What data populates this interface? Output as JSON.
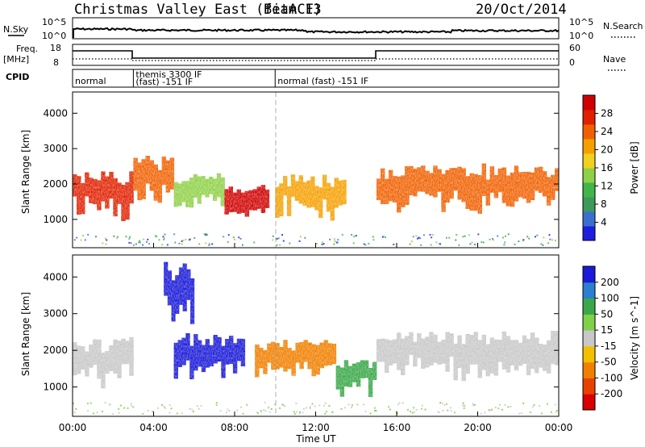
{
  "header": {
    "title": "Christmas Valley East (fitACF)",
    "beam": "Beam 13",
    "date": "20/Oct/2014"
  },
  "nsky_panel": {
    "left_label": "N.Sky",
    "left_ticks": [
      "10^5",
      "10^0"
    ],
    "right_ticks": [
      "10^5",
      "10^0"
    ],
    "right_label": "N.Search"
  },
  "freq_panel": {
    "left_label_1": "Freq.",
    "left_label_2": "[MHz]",
    "left_ticks": [
      "18",
      "8"
    ],
    "right_ticks": [
      "60",
      "0"
    ],
    "right_label": "Nave"
  },
  "cpid_panel": {
    "label": "CPID",
    "segments": [
      {
        "start_hour": 0.0,
        "lines": [
          "normal"
        ]
      },
      {
        "start_hour": 3.0,
        "lines": [
          "themis 3300 IF",
          "(fast) -151 IF"
        ]
      },
      {
        "start_hour": 10.0,
        "lines": [
          "normal (fast) -151 IF"
        ]
      }
    ]
  },
  "chart_data": [
    {
      "type": "heatmap",
      "name": "power",
      "ylabel": "Slant Range [km]",
      "yticks": [
        "4000",
        "3000",
        "2000",
        "1000"
      ],
      "ylim": [
        200,
        4600
      ],
      "xlim": [
        0,
        24
      ],
      "colorbar": {
        "label": "Power [dB]",
        "ticks": [
          "28",
          "24",
          "20",
          "16",
          "12",
          "8",
          "4"
        ],
        "range": [
          0,
          30
        ]
      },
      "echo_regions": [
        {
          "x": [
            0.0,
            3.0
          ],
          "range_km": [
            1100,
            2200
          ],
          "value_db": 26
        },
        {
          "x": [
            3.0,
            5.0
          ],
          "range_km": [
            1300,
            2600
          ],
          "value_db": 22
        },
        {
          "x": [
            5.0,
            7.5
          ],
          "range_km": [
            1300,
            2200
          ],
          "value_db": 14
        },
        {
          "x": [
            7.5,
            9.7
          ],
          "range_km": [
            1100,
            1900
          ],
          "value_db": 27
        },
        {
          "x": [
            10.0,
            13.5
          ],
          "range_km": [
            1100,
            2100
          ],
          "value_db": 18
        },
        {
          "x": [
            15.0,
            24.0
          ],
          "range_km": [
            1300,
            2400
          ],
          "value_db": 22
        }
      ]
    },
    {
      "type": "heatmap",
      "name": "velocity",
      "ylabel": "Slant Range [km]",
      "yticks": [
        "4000",
        "3000",
        "2000",
        "1000"
      ],
      "ylim": [
        200,
        4600
      ],
      "xlim": [
        0,
        24
      ],
      "xticks": [
        "00:00",
        "04:00",
        "08:00",
        "12:00",
        "16:00",
        "20:00",
        "00:00"
      ],
      "xlabel": "Time UT",
      "colorbar": {
        "label": "Velocity [m s^-1]",
        "ticks": [
          "200",
          "100",
          "50",
          "15",
          "-15",
          "-50",
          "-100",
          "-200"
        ],
        "range": [
          -250,
          250
        ]
      },
      "echo_regions": [
        {
          "x": [
            0.0,
            3.0
          ],
          "range_km": [
            1100,
            2200
          ],
          "value_ms": 0
        },
        {
          "x": [
            4.5,
            6.0
          ],
          "range_km": [
            2700,
            4200
          ],
          "value_ms": 200
        },
        {
          "x": [
            5.0,
            8.5
          ],
          "range_km": [
            1300,
            2300
          ],
          "value_ms": 180
        },
        {
          "x": [
            9.0,
            13.0
          ],
          "range_km": [
            1300,
            2200
          ],
          "value_ms": -80
        },
        {
          "x": [
            13.0,
            15.0
          ],
          "range_km": [
            900,
            1700
          ],
          "value_ms": 40
        },
        {
          "x": [
            15.0,
            24.0
          ],
          "range_km": [
            1300,
            2400
          ],
          "value_ms": 0
        }
      ]
    }
  ]
}
